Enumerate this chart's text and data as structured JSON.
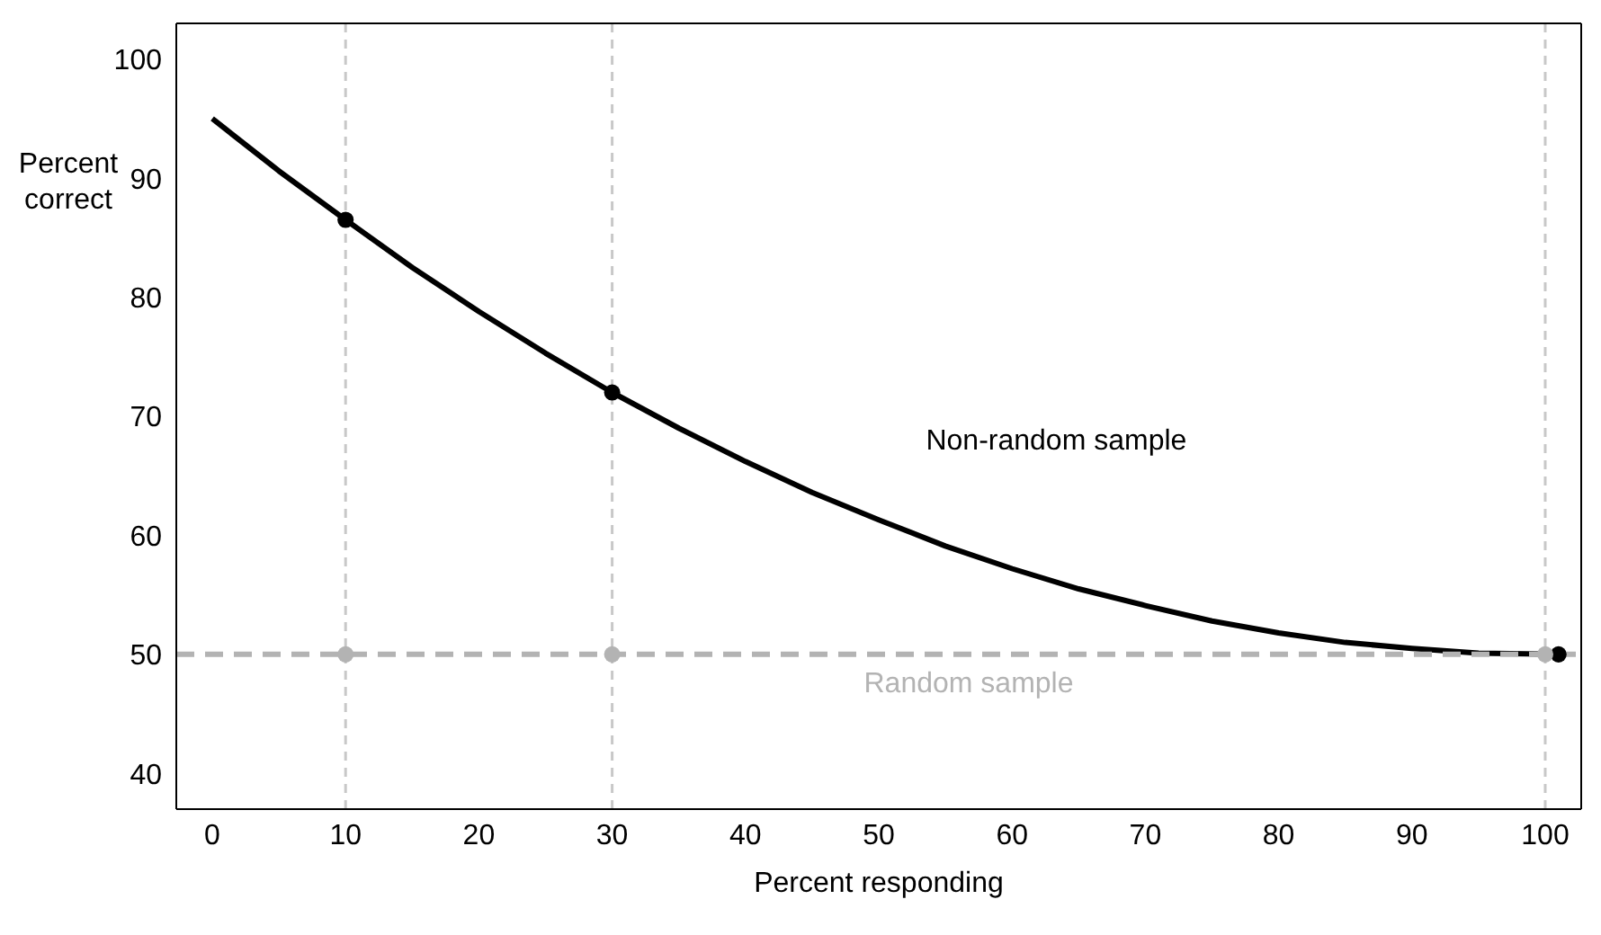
{
  "chart_data": {
    "type": "line",
    "xlabel": "Percent responding",
    "ylabel": "Percent correct",
    "xlim": [
      -2.7,
      102.7
    ],
    "ylim": [
      37,
      103
    ],
    "xticks": [
      0,
      10,
      20,
      30,
      40,
      50,
      60,
      70,
      80,
      90,
      100
    ],
    "yticks": [
      40,
      50,
      60,
      70,
      80,
      90,
      100
    ],
    "grid": false,
    "series": [
      {
        "name": "Non-random sample",
        "color": "#000000",
        "marker": "none",
        "line_style": "solid",
        "x": [
          0,
          5,
          10,
          15,
          20,
          25,
          30,
          35,
          40,
          45,
          50,
          55,
          60,
          65,
          70,
          75,
          80,
          85,
          90,
          95,
          101
        ],
        "values": [
          95,
          90.6,
          86.5,
          82.5,
          78.8,
          75.3,
          72,
          69,
          66.2,
          63.6,
          61.3,
          59.1,
          57.2,
          55.5,
          54.1,
          52.8,
          51.8,
          51,
          50.5,
          50.1,
          50
        ]
      },
      {
        "type": "scatter",
        "color": "#000000",
        "marker": "circle",
        "x": [
          10,
          30,
          101
        ],
        "values": [
          86.5,
          72,
          50
        ]
      },
      {
        "name": "Random sample",
        "color": "#b3b3b3",
        "marker": "none",
        "line_style": "dashed",
        "x": [
          -2.7,
          102.7
        ],
        "values": [
          50,
          50
        ]
      },
      {
        "type": "scatter",
        "color": "#b3b3b3",
        "marker": "circle",
        "x": [
          10,
          30,
          100
        ],
        "values": [
          50,
          50,
          50
        ]
      }
    ],
    "ref_lines": [
      {
        "axis": "x",
        "value": 10,
        "color": "#c8c8c8",
        "line_style": "dashed"
      },
      {
        "axis": "x",
        "value": 30,
        "color": "#c8c8c8",
        "line_style": "dashed"
      },
      {
        "axis": "x",
        "value": 100,
        "color": "#c8c8c8",
        "line_style": "dashed"
      }
    ]
  }
}
